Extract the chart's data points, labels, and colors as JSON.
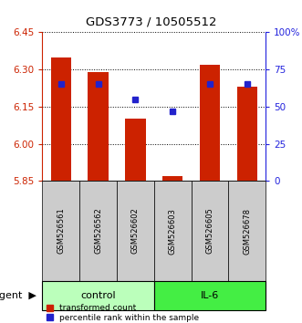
{
  "title": "GDS3773 / 10505512",
  "samples": [
    "GSM526561",
    "GSM526562",
    "GSM526602",
    "GSM526603",
    "GSM526605",
    "GSM526678"
  ],
  "red_values": [
    6.35,
    6.29,
    6.1,
    5.87,
    6.32,
    6.23
  ],
  "blue_percentiles": [
    65,
    65,
    55,
    47,
    65,
    65
  ],
  "y_min": 5.85,
  "y_max": 6.45,
  "y_ticks_left": [
    5.85,
    6.0,
    6.15,
    6.3,
    6.45
  ],
  "y_ticks_right": [
    0,
    25,
    50,
    75,
    100
  ],
  "groups": [
    {
      "label": "control",
      "indices": [
        0,
        1,
        2
      ],
      "color": "#bbffbb"
    },
    {
      "label": "IL-6",
      "indices": [
        3,
        4,
        5
      ],
      "color": "#44ee44"
    }
  ],
  "bar_color": "#cc2200",
  "dot_color": "#2222cc",
  "legend_labels": [
    "transformed count",
    "percentile rank within the sample"
  ],
  "legend_colors": [
    "#cc2200",
    "#2222cc"
  ],
  "left_axis_color": "#cc2200",
  "right_axis_color": "#2222dd",
  "sample_box_color": "#cccccc",
  "agent_label": "agent"
}
